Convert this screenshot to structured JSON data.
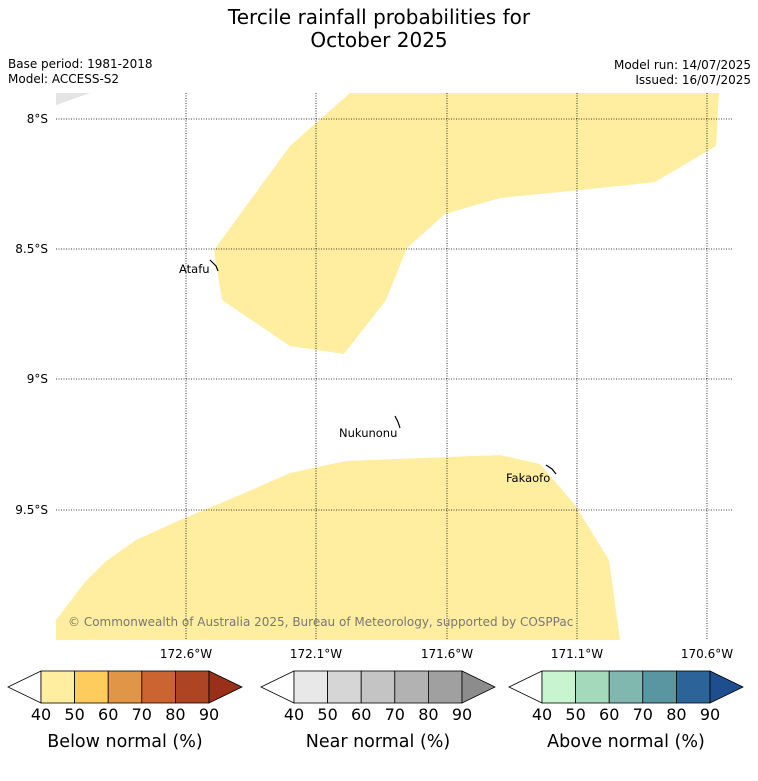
{
  "title": {
    "line1": "Tercile rainfall probabilities for",
    "line2": "October 2025"
  },
  "meta": {
    "base_period": "Base period: 1981-2018",
    "model": "Model: ACCESS-S2",
    "model_run": "Model run: 14/07/2025",
    "issued": "Issued: 16/07/2025"
  },
  "map": {
    "lat_labels": [
      "8°S",
      "8.5°S",
      "9°S",
      "9.5°S"
    ],
    "lon_labels": [
      "172.6°W",
      "172.1°W",
      "171.6°W",
      "171.1°W",
      "170.6°W"
    ],
    "places": [
      {
        "name": "Atafu"
      },
      {
        "name": "Nukunonu"
      },
      {
        "name": "Fakaofo"
      }
    ],
    "probability_fill": {
      "category": "Below normal",
      "range": "40-50",
      "color": "#ffeda0"
    },
    "copyright": "© Commonwealth of Australia 2025, Bureau of Meteorology, supported by COSPPac"
  },
  "colorbars": [
    {
      "title": "Below normal (%)",
      "ticks": [
        "40",
        "50",
        "60",
        "70",
        "80",
        "90"
      ],
      "colors": [
        "#ffffff",
        "#ffeda0",
        "#fecc5c",
        "#e19546",
        "#cb6431",
        "#ad4524",
        "#993019"
      ]
    },
    {
      "title": "Near normal (%)",
      "ticks": [
        "40",
        "50",
        "60",
        "70",
        "80",
        "90"
      ],
      "colors": [
        "#ffffff",
        "#e8e8e8",
        "#d6d6d6",
        "#c4c4c4",
        "#b2b2b2",
        "#a0a0a0",
        "#8c8c8c"
      ]
    },
    {
      "title": "Above normal (%)",
      "ticks": [
        "40",
        "50",
        "60",
        "70",
        "80",
        "90"
      ],
      "colors": [
        "#ffffff",
        "#c8f5d0",
        "#a4d9bc",
        "#80b8b0",
        "#5a96a1",
        "#2c6499",
        "#1f4e8f"
      ]
    }
  ]
}
